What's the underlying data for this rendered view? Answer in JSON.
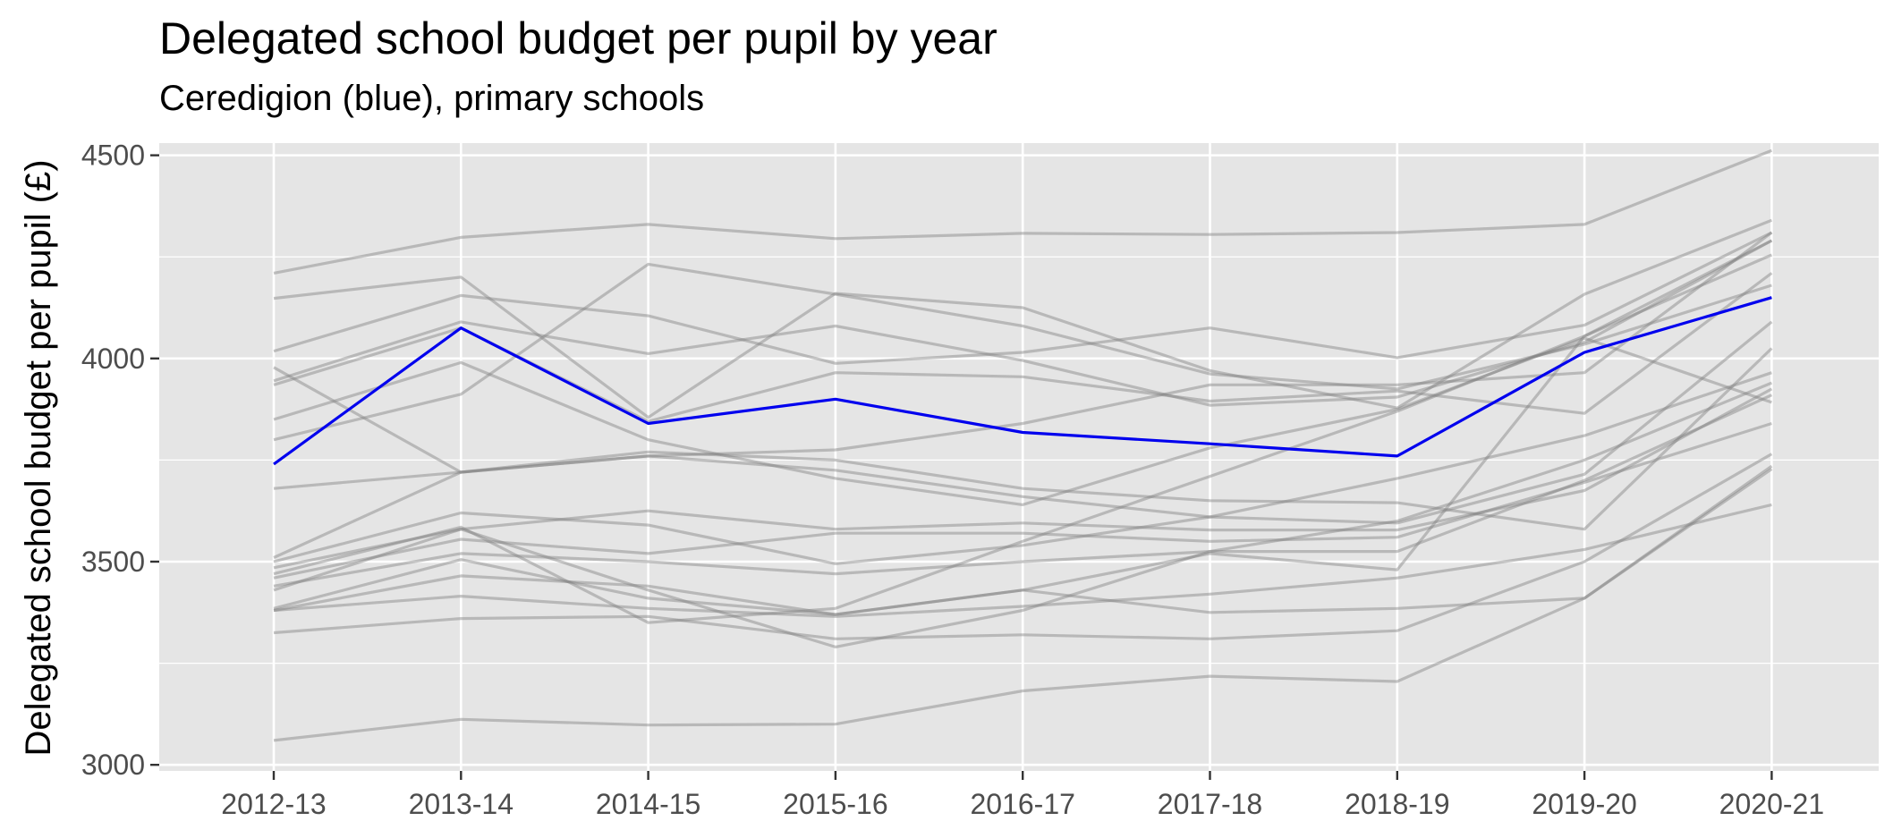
{
  "chart_data": {
    "type": "line",
    "title": "Delegated school budget per pupil by year",
    "subtitle": "Ceredigion (blue), primary schools",
    "xlabel": "",
    "ylabel": "Delegated school budget per pupil (£)",
    "categories": [
      "2012-13",
      "2013-14",
      "2014-15",
      "2015-16",
      "2016-17",
      "2017-18",
      "2018-19",
      "2019-20",
      "2020-21"
    ],
    "ylim": [
      2985,
      4530
    ],
    "yticks": [
      3000,
      3500,
      4000,
      4500
    ],
    "grid": true,
    "legend": "none",
    "colors": {
      "panel": "#e5e5e5",
      "grid": "#ffffff",
      "highlight": "#0000ee",
      "other": "#808080"
    },
    "highlight_series": {
      "values": [
        3740,
        4075,
        3840,
        3900,
        3818,
        3790,
        3760,
        4015,
        4150
      ]
    },
    "series": [
      {
        "values": [
          4210,
          4298,
          4330,
          4295,
          4308,
          4305,
          4310,
          4330,
          4512
        ]
      },
      {
        "values": [
          4148,
          4200,
          3855,
          4160,
          4125,
          3970,
          3878,
          4158,
          4340
        ]
      },
      {
        "values": [
          4018,
          4155,
          4105,
          3988,
          4015,
          4075,
          4002,
          4082,
          4310
        ]
      },
      {
        "values": [
          3978,
          3720,
          3760,
          3775,
          3840,
          3935,
          3935,
          3965,
          4310
        ]
      },
      {
        "values": [
          3945,
          4090,
          4012,
          4080,
          3995,
          3885,
          3905,
          4040,
          4290
        ]
      },
      {
        "values": [
          3935,
          4075,
          3845,
          3965,
          3955,
          3895,
          3920,
          3865,
          4210
        ]
      },
      {
        "values": [
          3850,
          3990,
          3800,
          3705,
          3640,
          3780,
          3875,
          4050,
          3892
        ]
      },
      {
        "values": [
          3800,
          3912,
          4232,
          4158,
          4080,
          3962,
          3925,
          4035,
          4180
        ]
      },
      {
        "values": [
          3680,
          3720,
          3770,
          3750,
          3680,
          3650,
          3645,
          3580,
          4025
        ]
      },
      {
        "values": [
          3510,
          3720,
          3760,
          3725,
          3660,
          3610,
          3595,
          3715,
          4090
        ]
      },
      {
        "values": [
          3500,
          3620,
          3590,
          3495,
          3540,
          3610,
          3705,
          3810,
          3965
        ]
      },
      {
        "values": [
          3485,
          3580,
          3625,
          3580,
          3595,
          3578,
          3578,
          3675,
          3925
        ]
      },
      {
        "values": [
          3470,
          3585,
          3350,
          3385,
          3550,
          3710,
          3870,
          4055,
          4255
        ]
      },
      {
        "values": [
          3460,
          3555,
          3520,
          3570,
          3570,
          3550,
          3560,
          3695,
          3840
        ]
      },
      {
        "values": [
          3440,
          3520,
          3500,
          3470,
          3500,
          3525,
          3525,
          3700,
          3910
        ]
      },
      {
        "values": [
          3430,
          3580,
          3430,
          3290,
          3380,
          3525,
          3600,
          3750,
          3940
        ]
      },
      {
        "values": [
          3385,
          3505,
          3410,
          3370,
          3430,
          3520,
          3480,
          4055,
          4290
        ]
      },
      {
        "values": [
          3380,
          3465,
          3440,
          3370,
          3430,
          3375,
          3385,
          3410,
          3735
        ]
      },
      {
        "values": [
          3380,
          3415,
          3385,
          3365,
          3390,
          3420,
          3460,
          3530,
          3640
        ]
      },
      {
        "values": [
          3325,
          3360,
          3365,
          3310,
          3320,
          3310,
          3330,
          3500,
          3765
        ]
      },
      {
        "values": [
          3060,
          3112,
          3098,
          3100,
          3182,
          3218,
          3205,
          3410,
          3728
        ]
      }
    ]
  }
}
